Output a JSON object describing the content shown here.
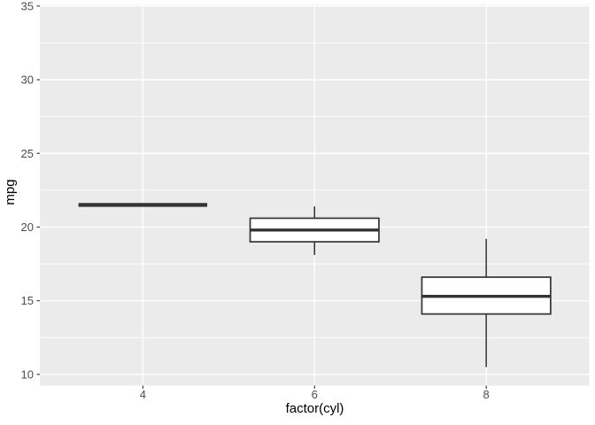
{
  "figure": {
    "background": "#FFFFFF"
  },
  "chart_data": {
    "type": "boxplot",
    "title": "",
    "xlabel": "factor(cyl)",
    "ylabel": "mpg",
    "categories": [
      "4",
      "6",
      "8"
    ],
    "series": [
      {
        "category": "4",
        "min": 21.5,
        "q1": 21.5,
        "median": 21.5,
        "q3": 21.5,
        "max": 21.5,
        "outliers": []
      },
      {
        "category": "6",
        "min": 18.1,
        "q1": 19.0,
        "median": 19.8,
        "q3": 20.6,
        "max": 21.4,
        "outliers": []
      },
      {
        "category": "8",
        "min": 10.5,
        "q1": 14.1,
        "median": 15.3,
        "q3": 16.6,
        "max": 19.2,
        "outliers": []
      }
    ],
    "y_ticks": [
      10,
      15,
      20,
      25,
      30,
      35
    ],
    "y_minor_gridlines": [
      12.5,
      17.5,
      22.5,
      27.5,
      32.5
    ],
    "ylim": [
      9.24,
      35.08
    ],
    "grid": true,
    "legend": false,
    "style": {
      "panel_background": "#EBEBEB",
      "gridline_color": "#FFFFFF",
      "box_stroke": "#333333",
      "box_fill": "#FFFFFF",
      "tick_label_color": "#4D4D4D",
      "tick_mark_color": "#333333",
      "axis_title_color": "#000000"
    }
  }
}
